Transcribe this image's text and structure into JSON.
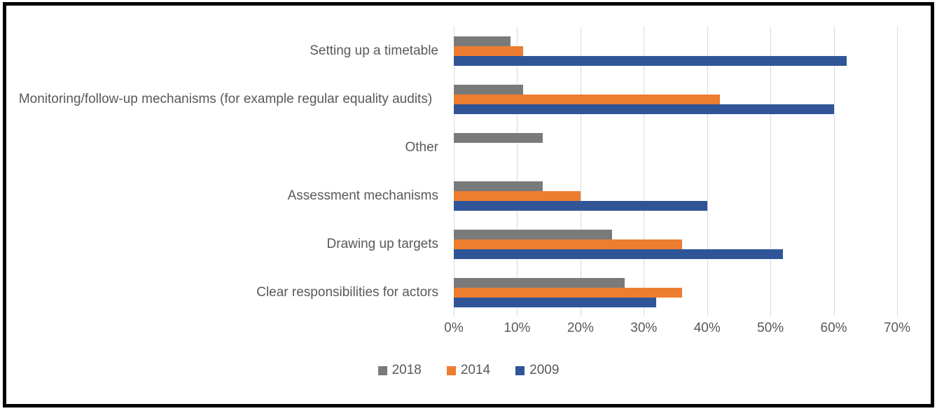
{
  "chart_data": {
    "type": "bar",
    "orientation": "horizontal",
    "title": "",
    "xlabel": "",
    "ylabel": "",
    "categories": [
      "Setting up a timetable",
      "Monitoring/follow-up mechanisms (for example regular equality audits)",
      "Other",
      "Assessment mechanisms",
      "Drawing up targets",
      "Clear responsibilities for actors"
    ],
    "series": [
      {
        "name": "2018",
        "color": "#7A7A7A",
        "values": [
          9,
          11,
          14,
          14,
          25,
          27
        ]
      },
      {
        "name": "2014",
        "color": "#ED7D31",
        "values": [
          11,
          42,
          0,
          20,
          36,
          36
        ]
      },
      {
        "name": "2009",
        "color": "#2F5597",
        "values": [
          62,
          60,
          0,
          40,
          52,
          32
        ]
      }
    ],
    "x_ticks": [
      "0%",
      "10%",
      "20%",
      "30%",
      "40%",
      "50%",
      "60%",
      "70%"
    ],
    "xlim": [
      0,
      70
    ],
    "grid": true,
    "legend_position": "bottom",
    "legend_labels": [
      "2018",
      "2014",
      "2009"
    ],
    "style": {
      "gridline_color": "#D9D9D9",
      "text_color": "#595959",
      "frame_border_color": "#000000",
      "background_color": "#FFFFFF"
    }
  }
}
